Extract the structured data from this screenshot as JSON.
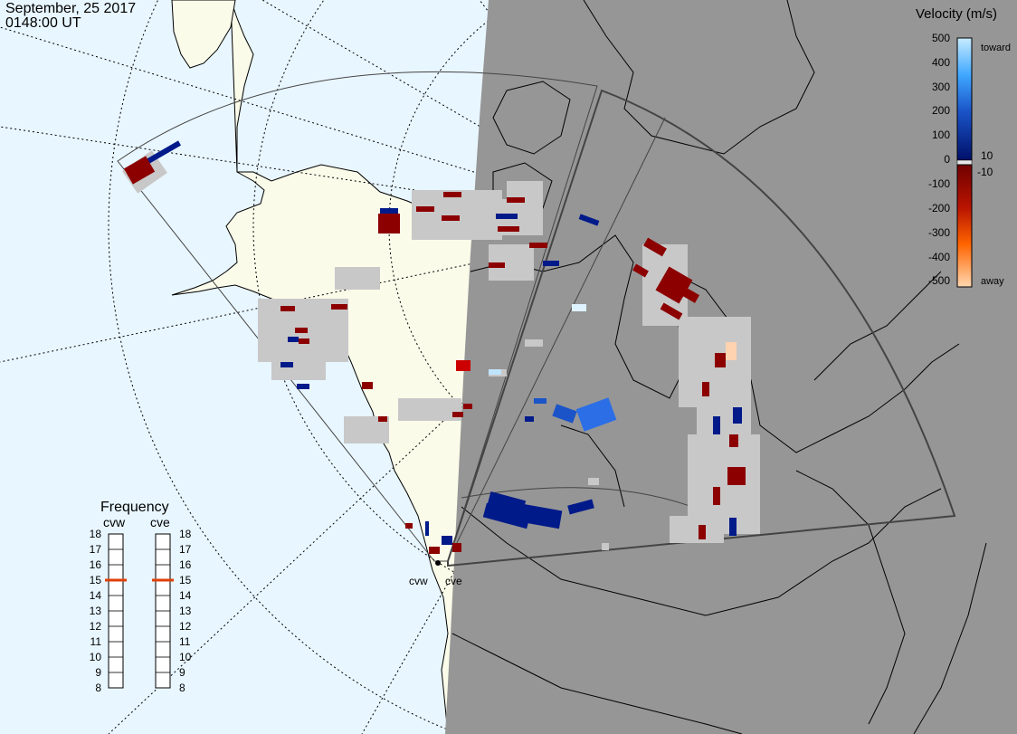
{
  "header": {
    "date": "September, 25 2017",
    "time": "0148:00 UT"
  },
  "colorbar": {
    "title": "Velocity (m/s)",
    "ticks": [
      "500",
      "400",
      "300",
      "200",
      "100",
      "10",
      "0",
      "-10",
      "-100",
      "-200",
      "-300",
      "-400",
      "-500"
    ],
    "toward_label": "toward",
    "away_label": "away"
  },
  "frequency": {
    "title": "Frequency",
    "radars": [
      {
        "name": "cvw",
        "value": 15
      },
      {
        "name": "cve",
        "value": 15
      }
    ],
    "scale": [
      "18",
      "17",
      "16",
      "15",
      "14",
      "13",
      "12",
      "11",
      "10",
      "9",
      "8"
    ]
  },
  "radar_sites": [
    {
      "label": "cvw"
    },
    {
      "label": "cve"
    }
  ],
  "colors": {
    "ocean": "#e8f6ff",
    "land": "#fbfbea",
    "night": "#969696",
    "scatter_gray": "#c8c8c8",
    "toward_strong": "#2b6ee6",
    "toward_weak": "#001a8a",
    "away_weak": "#8c0000",
    "away_strong": "#ffd2b0",
    "freq_marker": "#e0400a"
  }
}
